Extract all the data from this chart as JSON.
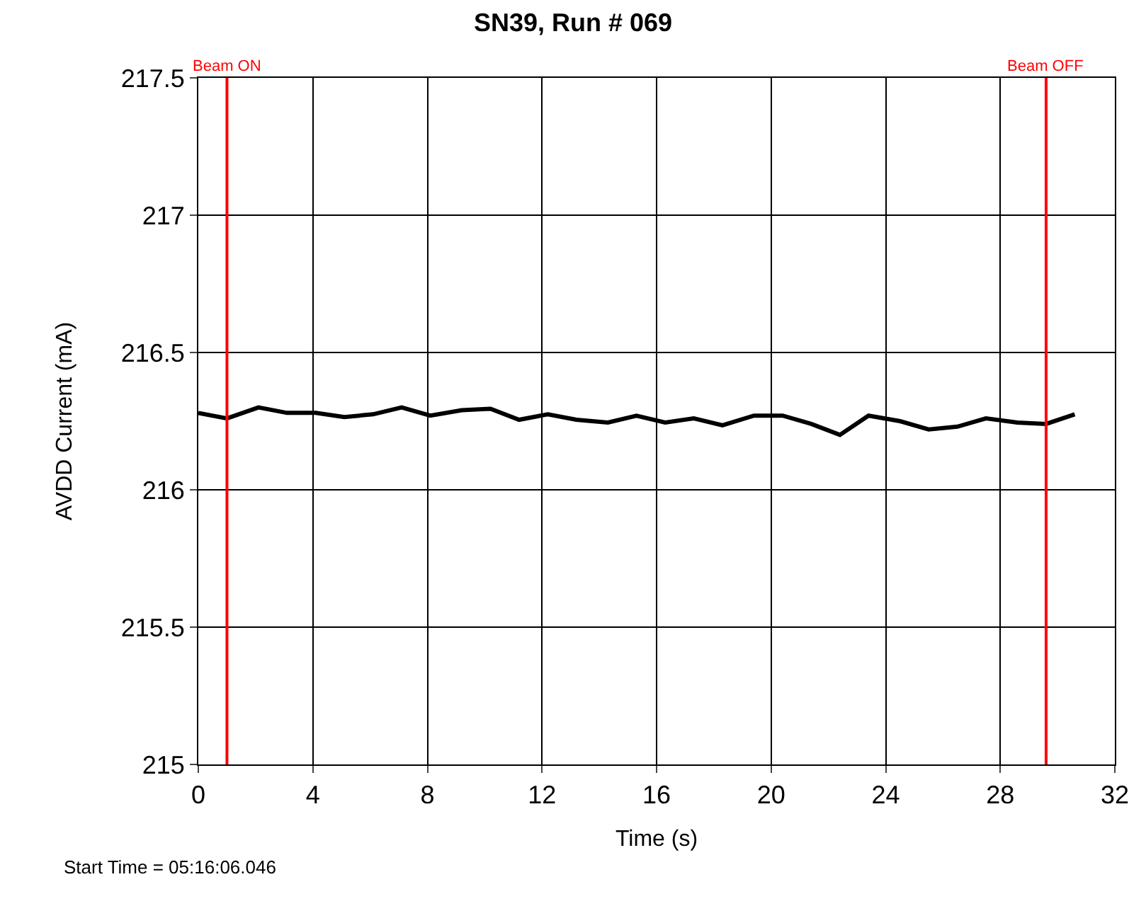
{
  "chart_data": {
    "type": "line",
    "title": "SN39, Run # 069",
    "xlabel": "Time (s)",
    "ylabel": "AVDD Current (mA)",
    "x": [
      0,
      1.0,
      2.1,
      3.1,
      4.1,
      5.1,
      6.1,
      7.1,
      8.1,
      9.2,
      10.2,
      11.2,
      12.2,
      13.2,
      14.3,
      15.3,
      16.3,
      17.3,
      18.3,
      19.4,
      20.4,
      21.4,
      22.4,
      23.4,
      24.5,
      25.5,
      26.5,
      27.5,
      28.6,
      29.6,
      30.6
    ],
    "series": [
      {
        "color": "#000000",
        "values": [
          216.28,
          216.26,
          216.3,
          216.28,
          216.28,
          216.265,
          216.275,
          216.3,
          216.27,
          216.29,
          216.295,
          216.255,
          216.275,
          216.255,
          216.245,
          216.27,
          216.245,
          216.26,
          216.235,
          216.27,
          216.27,
          216.24,
          216.2,
          216.27,
          216.25,
          216.22,
          216.23,
          216.26,
          216.245,
          216.24,
          216.275
        ]
      }
    ],
    "xlim": [
      0,
      32
    ],
    "xticks": [
      0,
      4,
      8,
      12,
      16,
      20,
      24,
      28,
      32
    ],
    "ylim": [
      215,
      217.5
    ],
    "yticks": [
      215,
      215.5,
      216,
      216.5,
      217,
      217.5
    ],
    "grid": true,
    "marker": "none",
    "line_style": "solid",
    "ref_lines": [
      {
        "axis": "x",
        "value": 1.0,
        "label": "Beam ON",
        "color": "#ff0000"
      },
      {
        "axis": "x",
        "value": 29.6,
        "label": "Beam OFF",
        "color": "#ff0000"
      }
    ],
    "annotations": [
      "Start Time = 05:16:06.046"
    ]
  }
}
